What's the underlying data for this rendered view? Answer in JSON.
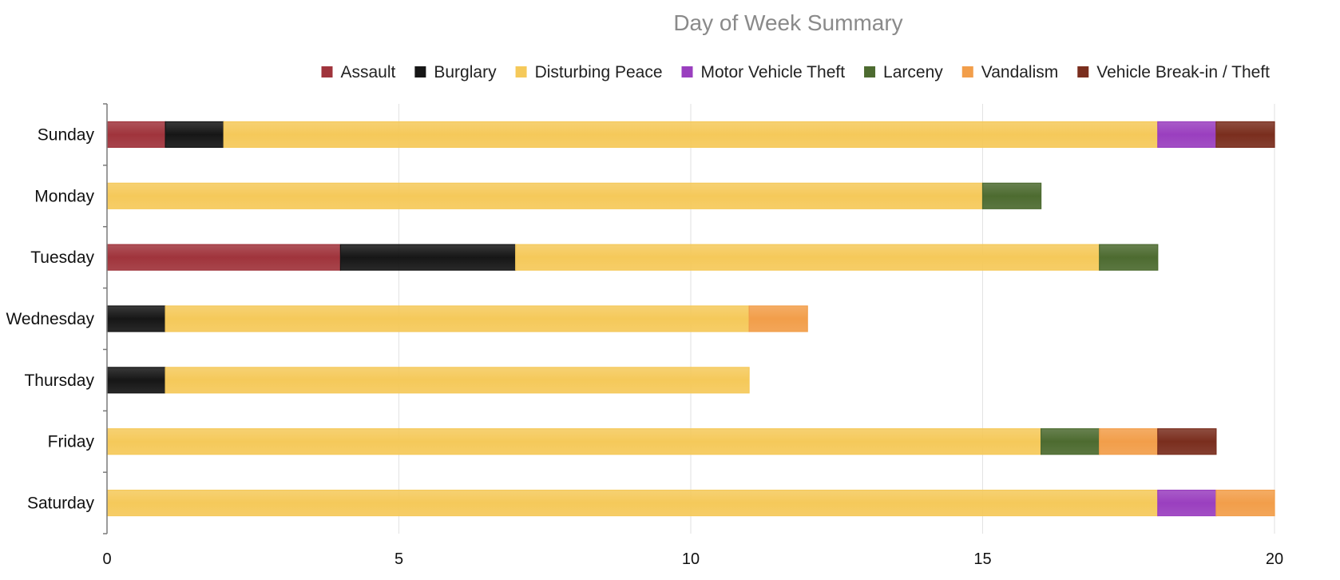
{
  "chart_data": {
    "type": "bar",
    "orientation": "horizontal",
    "stacked": true,
    "title": "Day of Week Summary",
    "xlabel": "",
    "ylabel": "",
    "xlim": [
      0,
      20
    ],
    "x_ticks": [
      "0",
      "5",
      "10",
      "15",
      "20"
    ],
    "grid": true,
    "legend_position": "top",
    "categories": [
      "Sunday",
      "Monday",
      "Tuesday",
      "Wednesday",
      "Thursday",
      "Friday",
      "Saturday"
    ],
    "series": [
      {
        "name": "Assault",
        "color": "#a0343c",
        "values": [
          1,
          0,
          4,
          0,
          0,
          0,
          0
        ]
      },
      {
        "name": "Burglary",
        "color": "#161616",
        "values": [
          1,
          0,
          3,
          1,
          1,
          0,
          0
        ]
      },
      {
        "name": "Disturbing Peace",
        "color": "#f5c95a",
        "values": [
          16,
          15,
          10,
          10,
          10,
          16,
          18
        ]
      },
      {
        "name": "Motor Vehicle Theft",
        "color": "#9a3fbf",
        "values": [
          1,
          0,
          0,
          0,
          0,
          0,
          1
        ]
      },
      {
        "name": "Larceny",
        "color": "#4d6b30",
        "values": [
          0,
          1,
          1,
          0,
          0,
          1,
          0
        ]
      },
      {
        "name": "Vandalism",
        "color": "#f29e4a",
        "values": [
          0,
          0,
          0,
          1,
          0,
          1,
          1
        ]
      },
      {
        "name": "Vehicle Break-in / Theft",
        "color": "#7a2e1e",
        "values": [
          1,
          0,
          0,
          0,
          0,
          1,
          0
        ]
      }
    ]
  }
}
